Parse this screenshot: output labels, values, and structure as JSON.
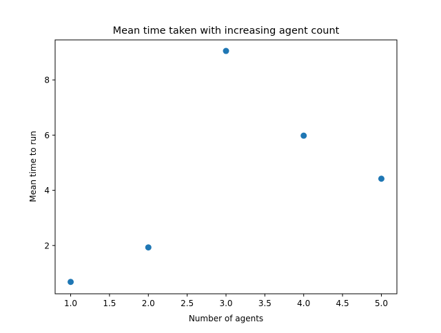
{
  "chart_data": {
    "type": "scatter",
    "title": "Mean time taken with increasing agent count",
    "xlabel": "Number of agents",
    "ylabel": "Mean time to run",
    "xlim": [
      0.8,
      5.2
    ],
    "ylim": [
      0.25,
      9.45
    ],
    "xticks": [
      1.0,
      1.5,
      2.0,
      2.5,
      3.0,
      3.5,
      4.0,
      4.5,
      5.0
    ],
    "xtick_labels": [
      "1.0",
      "1.5",
      "2.0",
      "2.5",
      "3.0",
      "3.5",
      "4.0",
      "4.5",
      "5.0"
    ],
    "yticks": [
      2,
      4,
      6,
      8
    ],
    "ytick_labels": [
      "2",
      "4",
      "6",
      "8"
    ],
    "grid": false,
    "series": [
      {
        "color": "#1f77b4",
        "x": [
          1,
          2,
          3,
          4,
          5
        ],
        "y": [
          0.68,
          1.93,
          9.05,
          5.98,
          4.42
        ]
      }
    ]
  }
}
